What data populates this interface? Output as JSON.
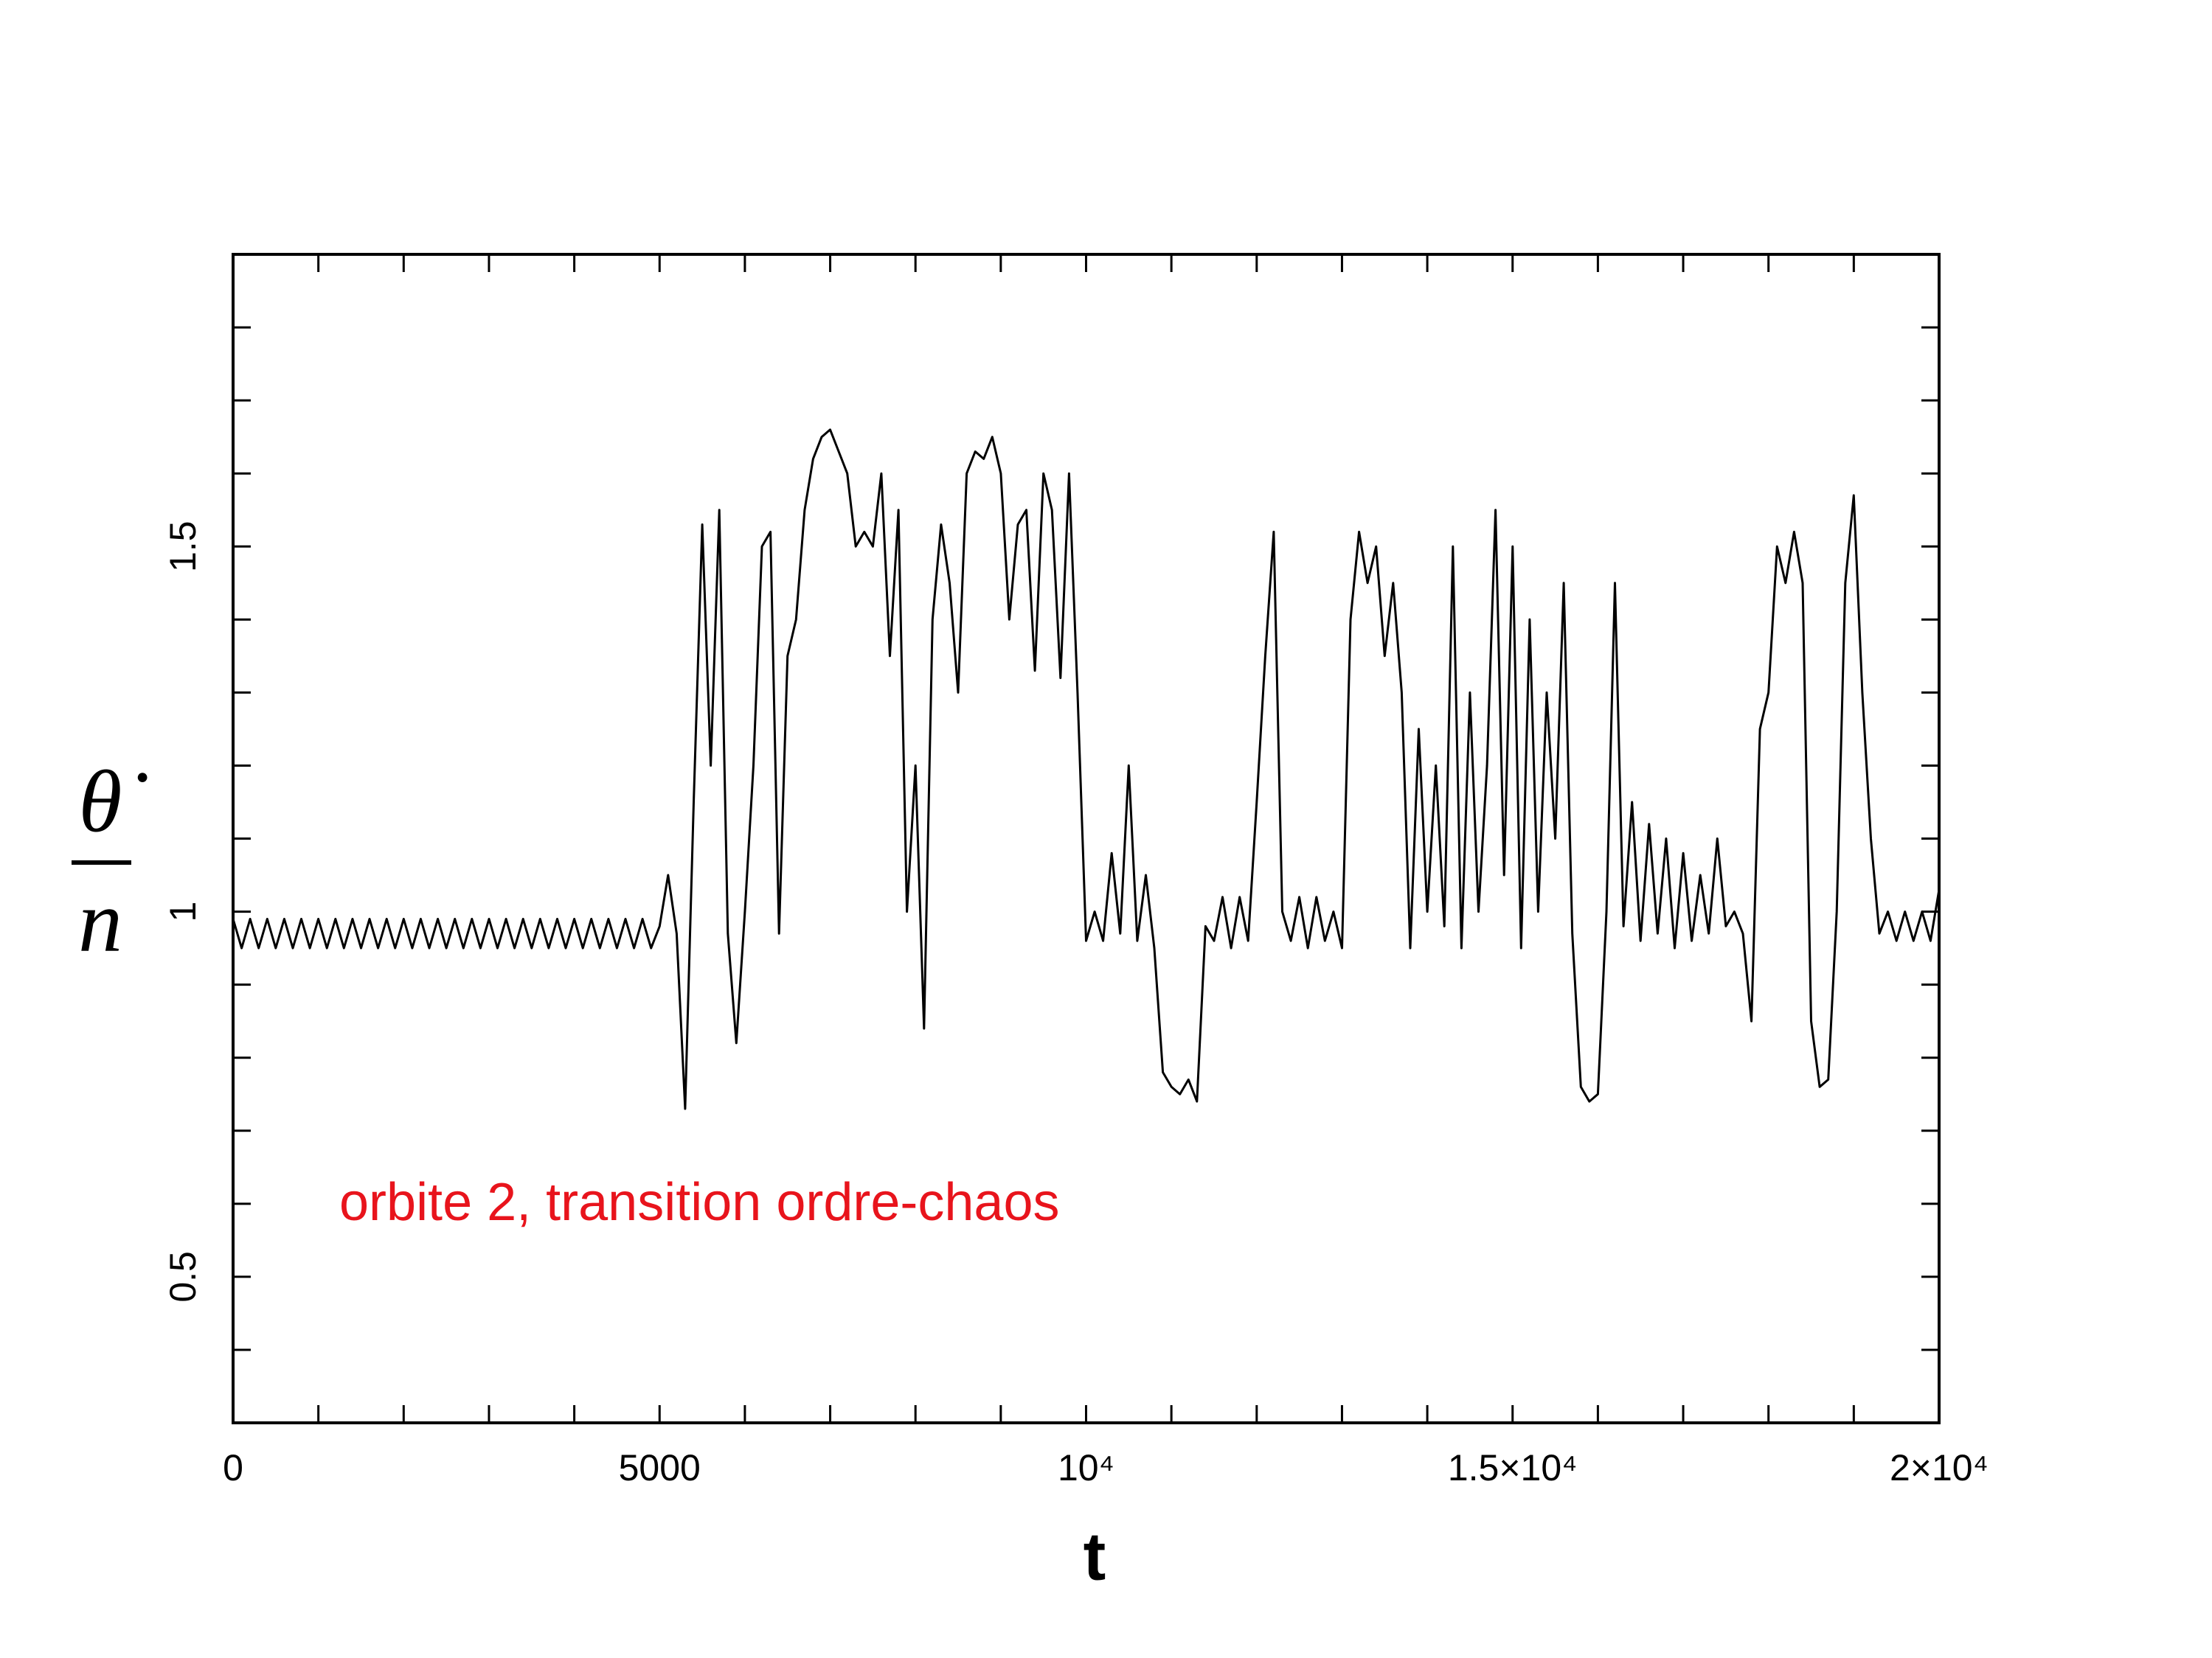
{
  "chart_data": {
    "type": "line",
    "xlabel": "t",
    "ylabel": {
      "numerator": "θ̇",
      "denominator": "n"
    },
    "annotation": "orbite 2, transition ordre-chaos",
    "color": "#000000",
    "annotation_color": "#e8141c",
    "xlim": [
      0,
      20000
    ],
    "ylim": [
      0.3,
      1.9
    ],
    "xticks": [
      0,
      5000,
      {
        "value": 10000,
        "label": "10⁴"
      },
      {
        "value": 15000,
        "label": "1.5×10⁴"
      },
      {
        "value": 20000,
        "label": "2×10⁴"
      }
    ],
    "xminorticks": [
      1000,
      2000,
      3000,
      4000,
      6000,
      7000,
      8000,
      9000,
      11000,
      12000,
      13000,
      14000,
      16000,
      17000,
      18000,
      19000
    ],
    "yticks": [
      0.5,
      1,
      1.5
    ],
    "yminorticks": [
      0.4,
      0.6,
      0.7,
      0.8,
      0.9,
      1.1,
      1.2,
      1.3,
      1.4,
      1.6,
      1.7,
      1.8
    ],
    "x": [
      0,
      100,
      200,
      300,
      400,
      500,
      600,
      700,
      800,
      900,
      1000,
      1100,
      1200,
      1300,
      1400,
      1500,
      1600,
      1700,
      1800,
      1900,
      2000,
      2100,
      2200,
      2300,
      2400,
      2500,
      2600,
      2700,
      2800,
      2900,
      3000,
      3100,
      3200,
      3300,
      3400,
      3500,
      3600,
      3700,
      3800,
      3900,
      4000,
      4100,
      4200,
      4300,
      4400,
      4500,
      4600,
      4700,
      4800,
      4900,
      5000,
      5100,
      5200,
      5300,
      5400,
      5500,
      5600,
      5700,
      5800,
      5900,
      6000,
      6100,
      6200,
      6300,
      6400,
      6500,
      6600,
      6700,
      6800,
      6900,
      7000,
      7100,
      7200,
      7300,
      7400,
      7500,
      7600,
      7700,
      7800,
      7900,
      8000,
      8100,
      8200,
      8300,
      8400,
      8500,
      8600,
      8700,
      8800,
      8900,
      9000,
      9100,
      9200,
      9300,
      9400,
      9500,
      9600,
      9700,
      9800,
      9900,
      10000,
      10100,
      10200,
      10300,
      10400,
      10500,
      10600,
      10700,
      10800,
      10900,
      11000,
      11100,
      11200,
      11300,
      11400,
      11500,
      11600,
      11700,
      11800,
      11900,
      12000,
      12100,
      12200,
      12300,
      12400,
      12500,
      12600,
      12700,
      12800,
      12900,
      13000,
      13100,
      13200,
      13300,
      13400,
      13500,
      13600,
      13700,
      13800,
      13900,
      14000,
      14100,
      14200,
      14300,
      14400,
      14500,
      14600,
      14700,
      14800,
      14900,
      15000,
      15100,
      15200,
      15300,
      15400,
      15500,
      15600,
      15700,
      15800,
      15900,
      16000,
      16100,
      16200,
      16300,
      16400,
      16500,
      16600,
      16700,
      16800,
      16900,
      17000,
      17100,
      17200,
      17300,
      17400,
      17500,
      17600,
      17700,
      17800,
      17900,
      18000,
      18100,
      18200,
      18300,
      18400,
      18500,
      18600,
      18700,
      18800,
      18900,
      19000,
      19100,
      19200,
      19300,
      19400,
      19500,
      19600,
      19700,
      19800,
      19900,
      20000
    ],
    "values": [
      0.99,
      0.95,
      0.99,
      0.95,
      0.99,
      0.95,
      0.99,
      0.95,
      0.99,
      0.95,
      0.99,
      0.95,
      0.99,
      0.95,
      0.99,
      0.95,
      0.99,
      0.95,
      0.99,
      0.95,
      0.99,
      0.95,
      0.99,
      0.95,
      0.99,
      0.95,
      0.99,
      0.95,
      0.99,
      0.95,
      0.99,
      0.95,
      0.99,
      0.95,
      0.99,
      0.95,
      0.99,
      0.95,
      0.99,
      0.95,
      0.99,
      0.95,
      0.99,
      0.95,
      0.99,
      0.95,
      0.99,
      0.95,
      0.99,
      0.95,
      0.98,
      1.05,
      0.97,
      0.73,
      1.15,
      1.53,
      1.2,
      1.55,
      0.97,
      0.82,
      1.0,
      1.2,
      1.5,
      1.52,
      0.97,
      1.35,
      1.4,
      1.55,
      1.62,
      1.65,
      1.66,
      1.63,
      1.6,
      1.5,
      1.52,
      1.5,
      1.6,
      1.35,
      1.55,
      1.0,
      1.2,
      0.84,
      1.4,
      1.53,
      1.45,
      1.3,
      1.6,
      1.63,
      1.62,
      1.65,
      1.6,
      1.4,
      1.53,
      1.55,
      1.33,
      1.6,
      1.55,
      1.32,
      1.6,
      1.3,
      0.96,
      1.0,
      0.96,
      1.08,
      0.97,
      1.2,
      0.96,
      1.05,
      0.95,
      0.78,
      0.76,
      0.75,
      0.77,
      0.74,
      0.98,
      0.96,
      1.02,
      0.95,
      1.02,
      0.96,
      1.15,
      1.35,
      1.52,
      1.0,
      0.96,
      1.02,
      0.95,
      1.02,
      0.96,
      1.0,
      0.95,
      1.4,
      1.52,
      1.45,
      1.5,
      1.35,
      1.45,
      1.3,
      0.95,
      1.25,
      1.0,
      1.2,
      0.98,
      1.5,
      0.95,
      1.3,
      1.0,
      1.2,
      1.55,
      1.05,
      1.5,
      0.95,
      1.4,
      1.0,
      1.3,
      1.1,
      1.45,
      0.97,
      0.76,
      0.74,
      0.75,
      1.0,
      1.45,
      0.98,
      1.15,
      0.96,
      1.12,
      0.97,
      1.1,
      0.95,
      1.08,
      0.96,
      1.05,
      0.97,
      1.1,
      0.98,
      1.0,
      0.97,
      0.85,
      1.25,
      1.3,
      1.5,
      1.45,
      1.52,
      1.45,
      0.85,
      0.76,
      0.77,
      1.0,
      1.45,
      1.57,
      1.3,
      1.1,
      0.97,
      1.0,
      0.96,
      1.0,
      0.96,
      1.0,
      0.96,
      1.03
    ]
  }
}
